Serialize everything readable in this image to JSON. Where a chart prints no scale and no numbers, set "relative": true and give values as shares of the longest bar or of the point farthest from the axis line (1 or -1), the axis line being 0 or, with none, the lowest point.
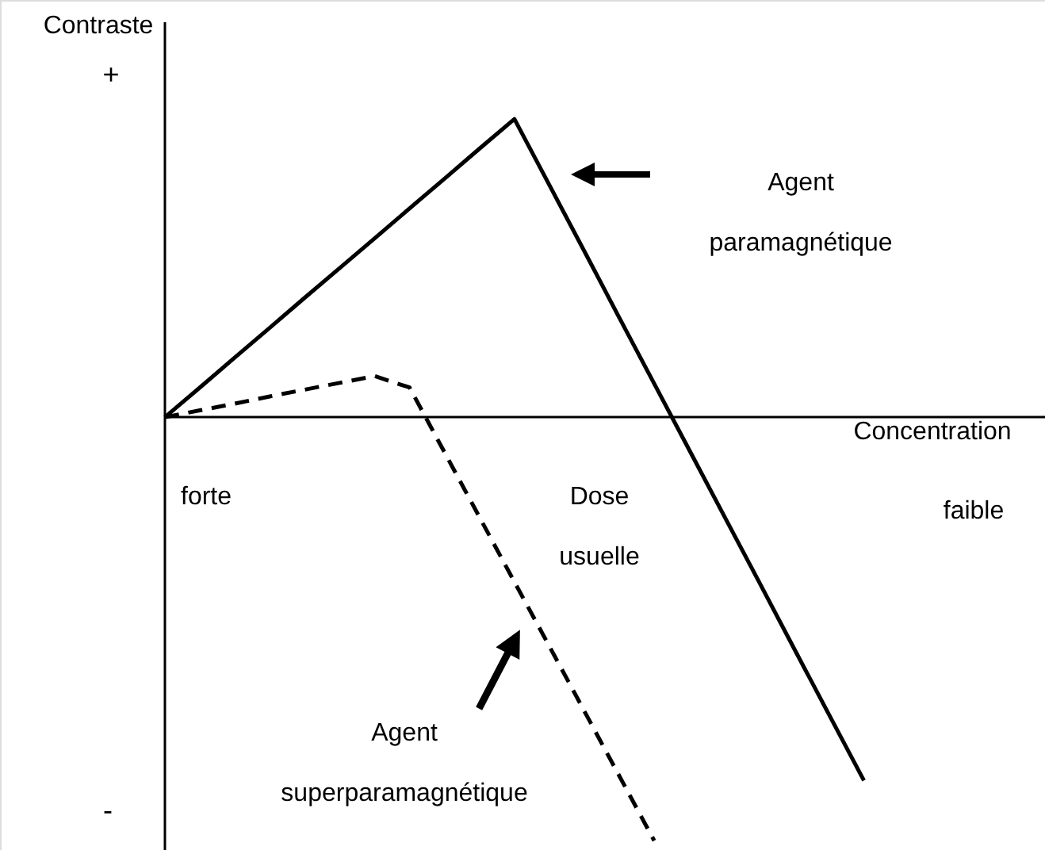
{
  "chart_data": {
    "type": "line",
    "relative": true,
    "xlabel": "Concentration",
    "ylabel": "Contraste",
    "marker": "none",
    "categories": [
      null,
      null,
      null,
      null,
      null,
      null,
      null,
      null,
      null,
      null,
      null,
      null,
      null,
      null,
      null,
      null,
      null,
      null,
      null,
      null,
      null,
      null,
      null,
      null,
      null,
      null
    ],
    "series": [
      {
        "name": "Agent paramagnétique",
        "color": "#000000",
        "line_style": "solid",
        "values": [
          0,
          0.07,
          0.141,
          0.211,
          0.282,
          0.352,
          0.422,
          0.493,
          0.563,
          0.634,
          0.704,
          0.548,
          0.392,
          0.235,
          0.079,
          -0.077,
          -0.233,
          -0.389,
          -0.546,
          -0.702,
          -0.858,
          null,
          null,
          null,
          null,
          null
        ]
      },
      {
        "name": "Agent superparamagnétique",
        "color": "#000000",
        "line_style": "dashed",
        "values": [
          0,
          0.016,
          0.032,
          0.049,
          0.065,
          0.081,
          0.097,
          0.07,
          -0.083,
          -0.236,
          -0.389,
          -0.541,
          -0.694,
          -0.847,
          -1,
          null,
          null,
          null,
          null,
          null,
          null,
          null,
          null,
          null,
          null,
          null
        ]
      }
    ],
    "annotations": [
      "+",
      "-",
      "forte",
      "Dose usuelle",
      "faible"
    ]
  }
}
